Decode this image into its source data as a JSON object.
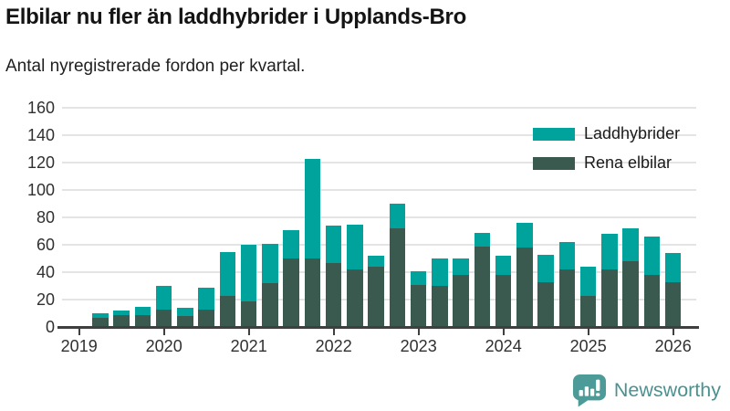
{
  "title": "Elbilar nu fler än laddhybrider i Upplands-Bro",
  "subtitle": "Antal nyregistrerade fordon per kvartal.",
  "legend": [
    {
      "label": "Laddhybrider",
      "color": "#00a39b"
    },
    {
      "label": "Rena elbilar",
      "color": "#3a5a50"
    }
  ],
  "footer": {
    "brand": "Newsworthy"
  },
  "colors": {
    "laddhybrider": "#00a39b",
    "rena_elbilar": "#3a5a50",
    "axis": "#3f3f3f",
    "gridline": "#e4e4e4",
    "brand": "#4d9b99"
  },
  "chart_data": {
    "type": "bar",
    "stacked": true,
    "title": "Elbilar nu fler än laddhybrider i Upplands-Bro",
    "subtitle": "Antal nyregistrerade fordon per kvartal.",
    "x": [
      "2019Q1",
      "2019Q2",
      "2019Q3",
      "2019Q4",
      "2020Q1",
      "2020Q2",
      "2020Q3",
      "2020Q4",
      "2021Q1",
      "2021Q2",
      "2021Q3",
      "2021Q4",
      "2022Q1",
      "2022Q2",
      "2022Q3",
      "2022Q4",
      "2023Q1",
      "2023Q2",
      "2023Q3",
      "2023Q4",
      "2024Q1",
      "2024Q2",
      "2024Q3",
      "2024Q4",
      "2025Q1",
      "2025Q2",
      "2025Q3",
      "2025Q4",
      "2026Q1"
    ],
    "series": [
      {
        "name": "Rena elbilar",
        "color": "#3a5a50",
        "values": [
          0,
          7,
          9,
          9,
          13,
          8,
          13,
          23,
          19,
          32,
          50,
          50,
          47,
          42,
          44,
          72,
          31,
          30,
          38,
          59,
          38,
          58,
          33,
          42,
          23,
          42,
          48,
          38,
          33
        ]
      },
      {
        "name": "Laddhybrider",
        "color": "#00a39b",
        "values": [
          0,
          3,
          3,
          6,
          17,
          6,
          16,
          32,
          41,
          29,
          21,
          73,
          27,
          33,
          8,
          18,
          10,
          20,
          12,
          10,
          14,
          18,
          20,
          20,
          21,
          26,
          24,
          28,
          21
        ]
      }
    ],
    "xticks": [
      "2019",
      "2020",
      "2021",
      "2022",
      "2023",
      "2024",
      "2025",
      "2026"
    ],
    "ylabel": "",
    "xlabel": "",
    "ylim": [
      0,
      160
    ],
    "yticks": [
      0,
      20,
      40,
      60,
      80,
      100,
      120,
      140,
      160
    ],
    "grid": true,
    "legend_position": "top-right",
    "legend_order": [
      "Laddhybrider",
      "Rena elbilar"
    ]
  }
}
